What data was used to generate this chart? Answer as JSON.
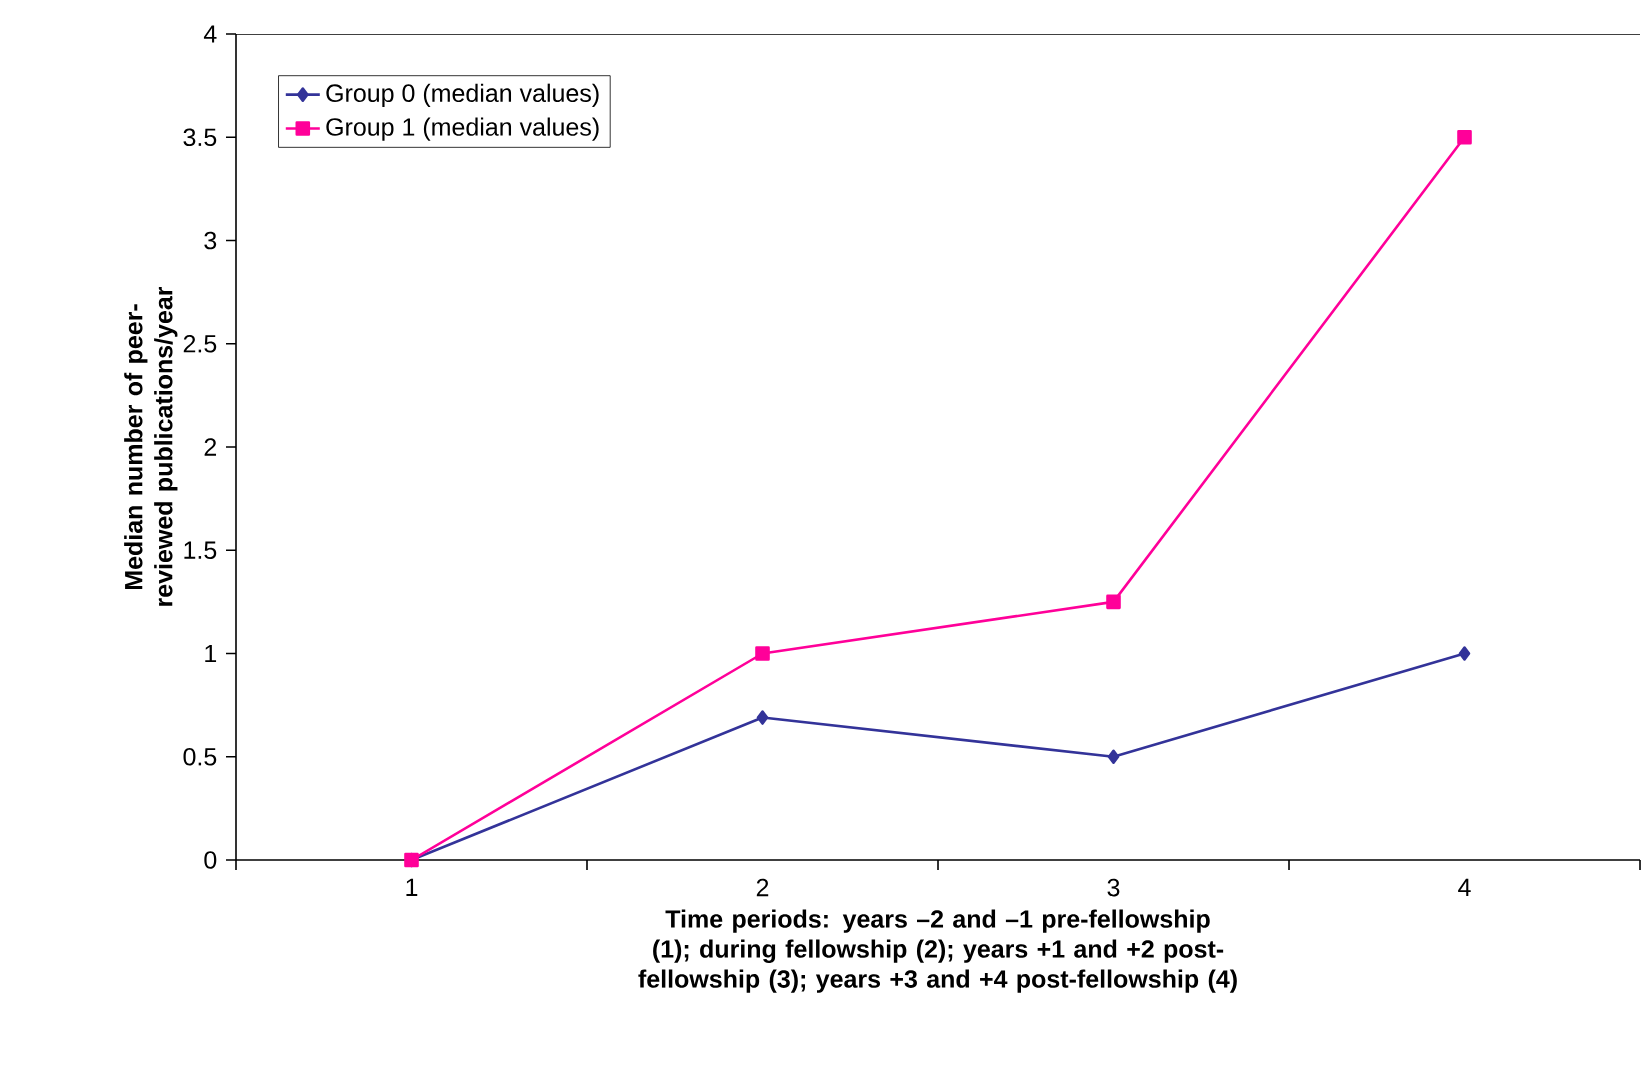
{
  "chart_data": {
    "type": "line",
    "categories": [
      "1",
      "2",
      "3",
      "4"
    ],
    "xlabel": "Time periods: years –2 and –1 pre-fellowship (1); during fellowship (2); years +1 and +2 post-fellowship (3); years +3 and +4 post-fellowship (4)",
    "ylabel": "Median number of peer-reviewed publications/year",
    "ylim": [
      0,
      4
    ],
    "yticks": [
      0,
      0.5,
      1,
      1.5,
      2,
      2.5,
      3,
      3.5,
      4
    ],
    "legend": "top left",
    "line_style": "solid",
    "series": [
      {
        "name": "Group 0 (median values)",
        "color": "#333399",
        "marker": "diamond",
        "values": [
          0,
          0.69,
          0.5,
          1
        ]
      },
      {
        "name": "Group 1 (median values)",
        "color": "#ff0099",
        "marker": "square",
        "values": [
          0,
          1,
          1.25,
          3.5
        ]
      }
    ]
  }
}
